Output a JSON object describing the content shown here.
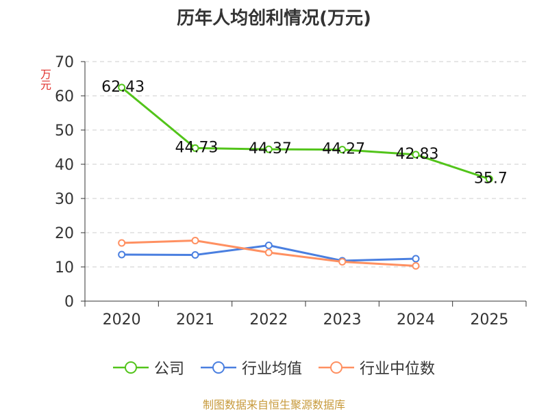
{
  "title": "历年人均创利情况(万元)",
  "source": "制图数据来自恒生聚源数据库",
  "chart_data": {
    "type": "line",
    "title": "历年人均创利情况(万元)",
    "xlabel": "",
    "ylabel": "万元",
    "ylim": [
      0,
      70
    ],
    "yticks": [
      "0",
      "10",
      "20",
      "30",
      "40",
      "50",
      "60",
      "70"
    ],
    "categories": [
      "2020",
      "2021",
      "2022",
      "2023",
      "2024",
      "2025"
    ],
    "grid": true,
    "legend_position": "bottom",
    "series": [
      {
        "name": "公司",
        "color": "#52c41a",
        "values": [
          62.43,
          44.73,
          44.37,
          44.27,
          42.83,
          35.7
        ],
        "labels": [
          "62.43",
          "44.73",
          "44.37",
          "44.27",
          "42.83",
          "35.7"
        ]
      },
      {
        "name": "行业均值",
        "color": "#4a7fe0",
        "values": [
          13.6,
          13.5,
          16.3,
          11.8,
          12.4,
          null
        ],
        "labels": []
      },
      {
        "name": "行业中位数",
        "color": "#ff9061",
        "values": [
          17.0,
          17.7,
          14.2,
          11.5,
          10.3,
          null
        ],
        "labels": []
      }
    ]
  }
}
